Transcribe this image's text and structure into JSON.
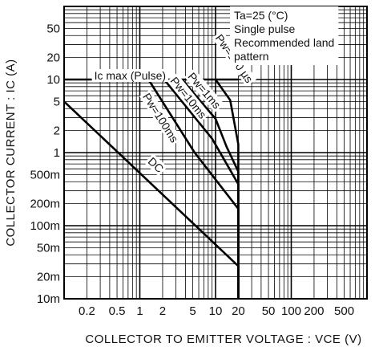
{
  "chart_data": {
    "type": "line",
    "xscale": "log",
    "yscale": "log",
    "xlim": [
      0.1,
      1000
    ],
    "ylim": [
      0.01,
      100
    ],
    "grid": true,
    "xlabel": "COLLECTOR TO EMITTER VOLTAGE : VCE  (V)",
    "ylabel": "COLLECTOR CURRENT : IC  (A)",
    "x_ticks": [
      {
        "value": 0.2,
        "label": "0.2"
      },
      {
        "value": 0.5,
        "label": "0.5"
      },
      {
        "value": 1,
        "label": "1"
      },
      {
        "value": 2,
        "label": "2"
      },
      {
        "value": 5,
        "label": "5"
      },
      {
        "value": 10,
        "label": "10"
      },
      {
        "value": 20,
        "label": "20"
      },
      {
        "value": 50,
        "label": "50"
      },
      {
        "value": 100,
        "label": "100"
      },
      {
        "value": 200,
        "label": "200"
      },
      {
        "value": 500,
        "label": "500"
      }
    ],
    "y_ticks": [
      {
        "value": 50,
        "label": "50"
      },
      {
        "value": 20,
        "label": "20"
      },
      {
        "value": 10,
        "label": "10"
      },
      {
        "value": 5,
        "label": "5"
      },
      {
        "value": 2,
        "label": "2"
      },
      {
        "value": 1,
        "label": "1"
      },
      {
        "value": 0.5,
        "label": "500m"
      },
      {
        "value": 0.2,
        "label": "200m"
      },
      {
        "value": 0.1,
        "label": "100m"
      },
      {
        "value": 0.05,
        "label": "50m"
      },
      {
        "value": 0.02,
        "label": "20m"
      },
      {
        "value": 0.01,
        "label": "10m"
      }
    ],
    "conditions": [
      "Ta=25 (°C)",
      "Single pulse",
      "Recommended land",
      "pattern"
    ],
    "series": [
      {
        "name": "Ic max (Pulse)",
        "label_pos": [
          0.25,
          10
        ],
        "points": [
          [
            0.1,
            10
          ],
          [
            20,
            10
          ]
        ]
      },
      {
        "name": "Pw=100 µs",
        "label_pos": [
          16,
          18
        ],
        "points": [
          [
            10,
            10
          ],
          [
            15.6,
            5.2
          ],
          [
            20,
            1.3
          ],
          [
            20,
            0.01
          ]
        ]
      },
      {
        "name": "Pw=1ms",
        "label_pos": [
          6.5,
          6.5
        ],
        "points": [
          [
            3.6,
            10
          ],
          [
            10,
            2.9
          ],
          [
            14,
            1.2
          ],
          [
            20,
            0.55
          ],
          [
            20,
            0.01
          ]
        ]
      },
      {
        "name": "Pw=10ms",
        "label_pos": [
          4,
          5.2
        ],
        "points": [
          [
            2.1,
            10
          ],
          [
            9,
            1.55
          ],
          [
            20,
            0.37
          ],
          [
            20,
            0.01
          ]
        ]
      },
      {
        "name": "Pw=100ms",
        "label_pos": [
          1.7,
          2.8
        ],
        "points": [
          [
            1.3,
            10
          ],
          [
            5.3,
            1
          ],
          [
            20,
            0.17
          ],
          [
            20,
            0.01
          ]
        ]
      },
      {
        "name": "DC",
        "label_pos": [
          1.5,
          0.62
        ],
        "points": [
          [
            0.1,
            5
          ],
          [
            20,
            0.028
          ],
          [
            20,
            0.01
          ]
        ]
      }
    ]
  }
}
